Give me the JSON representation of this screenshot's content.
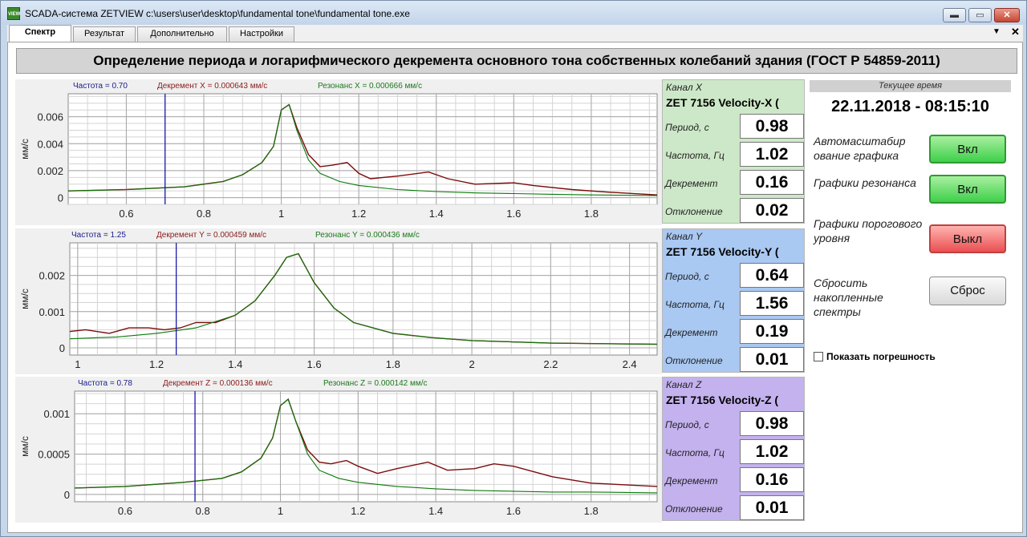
{
  "window": {
    "app_icon": "VIEW",
    "title": "SCADA-система ZETVIEW c:\\users\\user\\desktop\\fundamental tone\\fundamental tone.exe",
    "min": "▬",
    "max": "▭",
    "close": "✕"
  },
  "tabs": [
    {
      "label": "Спектр",
      "active": true
    },
    {
      "label": "Результат",
      "active": false
    },
    {
      "label": "Дополнительно",
      "active": false
    },
    {
      "label": "Настройки",
      "active": false
    }
  ],
  "tabbar": {
    "arrow": "▼",
    "close": "✕"
  },
  "header": "Определение периода и логарифмического декремента основного тона собственных колебаний здания (ГОСТ Р 54859-2011)",
  "charts": [
    {
      "freq_label": "Частота = 0.70",
      "decrement_label": "Декремент X = 0.000643 мм/с",
      "resonance_label": "Резонанс X = 0.000666 мм/с"
    },
    {
      "freq_label": "Частота = 1.25",
      "decrement_label": "Декремент Y = 0.000459 мм/с",
      "resonance_label": "Резонанс Y = 0.000436 мм/с"
    },
    {
      "freq_label": "Частота = 0.78",
      "decrement_label": "Декремент Z = 0.000136 мм/с",
      "resonance_label": "Резонанс Z = 0.000142 мм/с"
    }
  ],
  "channels": [
    {
      "title": "Канал X",
      "name": "ZET 7156  Velocity-X (",
      "period_label": "Период, с",
      "period": "0.98",
      "freq_label": "Частота, Гц",
      "freq": "1.02",
      "decrement_label": "Декремент",
      "decrement": "0.16",
      "deviation_label": "Отклонение",
      "deviation": "0.02",
      "color": "#cde8c8"
    },
    {
      "title": "Канал Y",
      "name": "ZET 7156  Velocity-Y (",
      "period_label": "Период, с",
      "period": "0.64",
      "freq_label": "Частота, Гц",
      "freq": "1.56",
      "decrement_label": "Декремент",
      "decrement": "0.19",
      "deviation_label": "Отклонение",
      "deviation": "0.01",
      "color": "#a9c8f2"
    },
    {
      "title": "Канал Z",
      "name": "ZET 7156  Velocity-Z (",
      "period_label": "Период, с",
      "period": "0.98",
      "freq_label": "Частота, Гц",
      "freq": "1.02",
      "decrement_label": "Декремент",
      "decrement": "0.16",
      "deviation_label": "Отклонение",
      "deviation": "0.01",
      "color": "#c3b2ee"
    }
  ],
  "time": {
    "header": "Текущее время",
    "value": "22.11.2018 - 08:15:10"
  },
  "options": {
    "autoscale_label": "Автомасштабир ование графика",
    "autoscale_btn": "Вкл",
    "resonance_label": "Графики резонанса",
    "resonance_btn": "Вкл",
    "threshold_label": "Графики порогового уровня",
    "threshold_btn": "Выкл",
    "reset_label": "Сбросить накопленные спектры",
    "reset_btn": "Сброс",
    "show_error": "Показать погрешность"
  },
  "chart_data": [
    {
      "type": "line",
      "ylabel": "мм/с",
      "xlim": [
        0.45,
        1.97
      ],
      "ylim": [
        -0.0005,
        0.0077
      ],
      "xticks": [
        0.6,
        0.8,
        1,
        1.2,
        1.4,
        1.6,
        1.8
      ],
      "xtick_labels": [
        "0.6",
        "0.8",
        "1",
        "1.2",
        "1.4",
        "1.6",
        "1.8"
      ],
      "yticks": [
        0,
        0.002,
        0.004,
        0.006
      ],
      "ytick_labels": [
        "0",
        "0.002",
        "0.004",
        "0.006"
      ],
      "cursor_x": 0.7,
      "series": [
        {
          "color": "#7a0b0b",
          "x": [
            0.45,
            0.6,
            0.75,
            0.85,
            0.9,
            0.95,
            0.98,
            1.0,
            1.02,
            1.04,
            1.07,
            1.1,
            1.13,
            1.17,
            1.2,
            1.23,
            1.3,
            1.38,
            1.43,
            1.5,
            1.6,
            1.65,
            1.75,
            1.85,
            1.97
          ],
          "y": [
            0.0005,
            0.0006,
            0.0008,
            0.0012,
            0.0017,
            0.0026,
            0.0038,
            0.0065,
            0.0069,
            0.0052,
            0.0032,
            0.0023,
            0.0024,
            0.0026,
            0.0018,
            0.0014,
            0.0016,
            0.0019,
            0.0014,
            0.001,
            0.0011,
            0.0009,
            0.0006,
            0.0004,
            0.0002
          ]
        },
        {
          "color": "#0a7a0a",
          "x": [
            0.45,
            0.6,
            0.75,
            0.85,
            0.9,
            0.95,
            0.98,
            1.0,
            1.02,
            1.04,
            1.07,
            1.1,
            1.15,
            1.2,
            1.3,
            1.4,
            1.5,
            1.6,
            1.7,
            1.8,
            1.97
          ],
          "y": [
            0.0005,
            0.0006,
            0.0008,
            0.0012,
            0.0017,
            0.0026,
            0.0038,
            0.0065,
            0.0069,
            0.005,
            0.0028,
            0.0018,
            0.0012,
            0.0009,
            0.0006,
            0.00045,
            0.00035,
            0.0003,
            0.00025,
            0.0002,
            0.00015
          ]
        }
      ]
    },
    {
      "type": "line",
      "ylabel": "мм/с",
      "xlim": [
        0.98,
        2.47
      ],
      "ylim": [
        -0.0002,
        0.0029
      ],
      "xticks": [
        1,
        1.2,
        1.4,
        1.6,
        1.8,
        2,
        2.2,
        2.4
      ],
      "xtick_labels": [
        "1",
        "1.2",
        "1.4",
        "1.6",
        "1.8",
        "2",
        "2.2",
        "2.4"
      ],
      "yticks": [
        0,
        0.001,
        0.002
      ],
      "ytick_labels": [
        "0",
        "0.001",
        "0.002"
      ],
      "cursor_x": 1.25,
      "series": [
        {
          "color": "#7a0b0b",
          "x": [
            0.98,
            1.02,
            1.08,
            1.13,
            1.18,
            1.22,
            1.26,
            1.3,
            1.35,
            1.4,
            1.45,
            1.5,
            1.53,
            1.56,
            1.6,
            1.65,
            1.7,
            1.8,
            1.9,
            2.0,
            2.2,
            2.47
          ],
          "y": [
            0.00045,
            0.0005,
            0.0004,
            0.00055,
            0.00055,
            0.0005,
            0.00055,
            0.0007,
            0.0007,
            0.0009,
            0.0013,
            0.002,
            0.0025,
            0.0026,
            0.0018,
            0.0011,
            0.0007,
            0.0004,
            0.00028,
            0.0002,
            0.00013,
            0.0001
          ]
        },
        {
          "color": "#0a7a0a",
          "x": [
            0.98,
            1.1,
            1.2,
            1.3,
            1.4,
            1.45,
            1.5,
            1.53,
            1.56,
            1.6,
            1.65,
            1.7,
            1.8,
            1.9,
            2.0,
            2.2,
            2.47
          ],
          "y": [
            0.00025,
            0.0003,
            0.0004,
            0.00055,
            0.0009,
            0.0013,
            0.002,
            0.0025,
            0.0026,
            0.0018,
            0.0011,
            0.0007,
            0.0004,
            0.00028,
            0.0002,
            0.00013,
            0.0001
          ]
        }
      ]
    },
    {
      "type": "line",
      "ylabel": "мм/с",
      "xlim": [
        0.47,
        1.97
      ],
      "ylim": [
        -9e-05,
        0.00128
      ],
      "xticks": [
        0.6,
        0.8,
        1,
        1.2,
        1.4,
        1.6,
        1.8
      ],
      "xtick_labels": [
        "0.6",
        "0.8",
        "1",
        "1.2",
        "1.4",
        "1.6",
        "1.8"
      ],
      "yticks": [
        0,
        0.0005,
        0.001
      ],
      "ytick_labels": [
        "0",
        "0.0005",
        "0.001"
      ],
      "cursor_x": 0.78,
      "series": [
        {
          "color": "#7a0b0b",
          "x": [
            0.47,
            0.6,
            0.75,
            0.85,
            0.9,
            0.95,
            0.98,
            1.0,
            1.02,
            1.04,
            1.07,
            1.1,
            1.13,
            1.17,
            1.2,
            1.25,
            1.3,
            1.38,
            1.43,
            1.5,
            1.55,
            1.6,
            1.7,
            1.8,
            1.97
          ],
          "y": [
            8e-05,
            0.0001,
            0.00015,
            0.0002,
            0.00028,
            0.00045,
            0.0007,
            0.0011,
            0.00118,
            0.0009,
            0.00055,
            0.0004,
            0.00038,
            0.00042,
            0.00035,
            0.00026,
            0.00032,
            0.0004,
            0.0003,
            0.00032,
            0.00038,
            0.00035,
            0.00022,
            0.00014,
            0.0001
          ]
        },
        {
          "color": "#0a7a0a",
          "x": [
            0.47,
            0.6,
            0.75,
            0.85,
            0.9,
            0.95,
            0.98,
            1.0,
            1.02,
            1.04,
            1.07,
            1.1,
            1.15,
            1.2,
            1.3,
            1.4,
            1.5,
            1.6,
            1.7,
            1.8,
            1.97
          ],
          "y": [
            8e-05,
            0.0001,
            0.00015,
            0.0002,
            0.00028,
            0.00045,
            0.0007,
            0.0011,
            0.00118,
            0.0009,
            0.0005,
            0.0003,
            0.0002,
            0.00015,
            0.0001,
            7e-05,
            5e-05,
            4e-05,
            3e-05,
            3e-05,
            2e-05
          ]
        }
      ]
    }
  ]
}
